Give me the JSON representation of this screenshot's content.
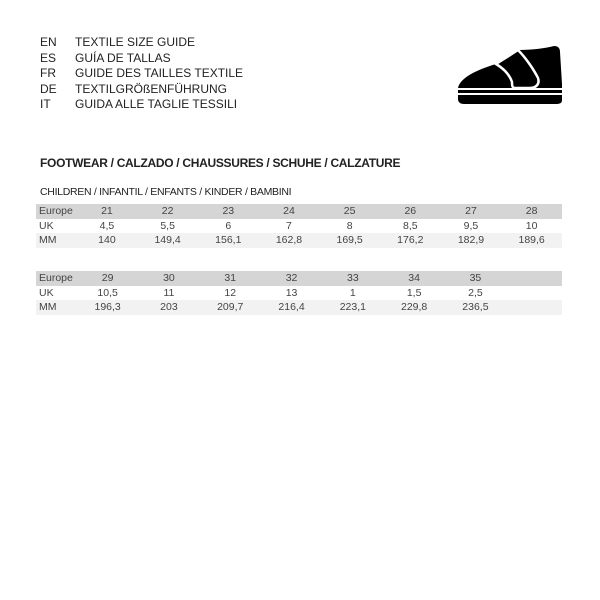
{
  "languages": [
    {
      "code": "EN",
      "title": "TEXTILE SIZE GUIDE"
    },
    {
      "code": "ES",
      "title": "GUÍA DE TALLAS"
    },
    {
      "code": "FR",
      "title": "GUIDE DES TAILLES TEXTILE"
    },
    {
      "code": "DE",
      "title": "TEXTILGRÖßENFÜHRUNG"
    },
    {
      "code": "IT",
      "title": "GUIDA ALLE TAGLIE TESSILI"
    }
  ],
  "icon": "shoe-icon",
  "section_title": "FOOTWEAR / CALZADO / CHAUSSURES / SCHUHE / CALZATURE",
  "subsection_title": "CHILDREN / INFANTIL / ENFANTS / KINDER / BAMBINI",
  "tables": [
    {
      "rows": [
        {
          "label": "Europe",
          "values": [
            "21",
            "22",
            "23",
            "24",
            "25",
            "26",
            "27",
            "28"
          ]
        },
        {
          "label": "UK",
          "values": [
            "4,5",
            "5,5",
            "6",
            "7",
            "8",
            "8,5",
            "9,5",
            "10"
          ]
        },
        {
          "label": "MM",
          "values": [
            "140",
            "149,4",
            "156,1",
            "162,8",
            "169,5",
            "176,2",
            "182,9",
            "189,6"
          ]
        }
      ]
    },
    {
      "rows": [
        {
          "label": "Europe",
          "values": [
            "29",
            "30",
            "31",
            "32",
            "33",
            "34",
            "35"
          ]
        },
        {
          "label": "UK",
          "values": [
            "10,5",
            "11",
            "12",
            "13",
            "1",
            "1,5",
            "2,5"
          ]
        },
        {
          "label": "MM",
          "values": [
            "196,3",
            "203",
            "209,7",
            "216,4",
            "223,1",
            "229,8",
            "236,5"
          ]
        }
      ]
    }
  ]
}
